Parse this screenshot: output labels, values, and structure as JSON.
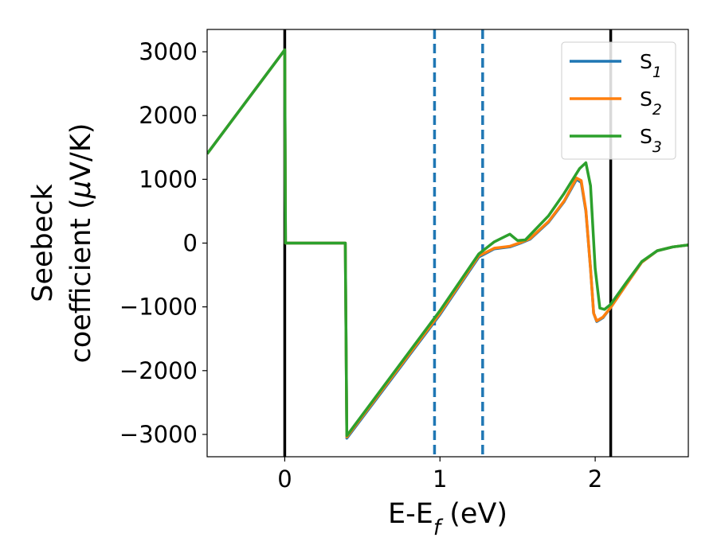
{
  "chart_data": {
    "type": "line",
    "xlabel": "E-E$_f$ (eV)",
    "ylabel_line1": "Seebeck",
    "ylabel_line2": "coefficient  ($\\mu$V/K)",
    "xlim": [
      -0.5,
      2.6
    ],
    "ylim": [
      -3350,
      3350
    ],
    "xticks": [
      0,
      1,
      2
    ],
    "yticks": [
      -3000,
      -2000,
      -1000,
      0,
      1000,
      2000,
      3000
    ],
    "grid": false,
    "legend_position": "top-right",
    "vertical_lines": [
      {
        "x": 0.0,
        "color": "#000000",
        "style": "solid"
      },
      {
        "x": 2.1,
        "color": "#000000",
        "style": "solid"
      },
      {
        "x": 0.965,
        "color": "#1f77b4",
        "style": "dashed"
      },
      {
        "x": 1.275,
        "color": "#1f77b4",
        "style": "dashed"
      }
    ],
    "series": [
      {
        "name": "S$_1$",
        "color": "#1f77b4",
        "points": [
          [
            -0.5,
            1400
          ],
          [
            0.0,
            3030
          ],
          [
            0.005,
            0
          ],
          [
            0.39,
            0
          ],
          [
            0.4,
            -3060
          ],
          [
            1.0,
            -1120
          ],
          [
            1.25,
            -220
          ],
          [
            1.35,
            -90
          ],
          [
            1.45,
            -60
          ],
          [
            1.52,
            0
          ],
          [
            1.58,
            60
          ],
          [
            1.7,
            330
          ],
          [
            1.8,
            650
          ],
          [
            1.88,
            1000
          ],
          [
            1.91,
            950
          ],
          [
            1.94,
            500
          ],
          [
            1.97,
            -400
          ],
          [
            1.99,
            -1100
          ],
          [
            2.01,
            -1230
          ],
          [
            2.05,
            -1170
          ],
          [
            2.1,
            -1010
          ],
          [
            2.2,
            -650
          ],
          [
            2.3,
            -300
          ],
          [
            2.4,
            -120
          ],
          [
            2.5,
            -60
          ],
          [
            2.6,
            -30
          ]
        ]
      },
      {
        "name": "S$_2$",
        "color": "#ff7f0e",
        "points": [
          [
            -0.5,
            1400
          ],
          [
            0.0,
            3030
          ],
          [
            0.005,
            0
          ],
          [
            0.39,
            0
          ],
          [
            0.4,
            -3040
          ],
          [
            1.0,
            -1100
          ],
          [
            1.25,
            -200
          ],
          [
            1.35,
            -80
          ],
          [
            1.45,
            -50
          ],
          [
            1.52,
            10
          ],
          [
            1.58,
            70
          ],
          [
            1.7,
            340
          ],
          [
            1.8,
            660
          ],
          [
            1.88,
            1020
          ],
          [
            1.91,
            980
          ],
          [
            1.94,
            520
          ],
          [
            1.97,
            -400
          ],
          [
            1.99,
            -1100
          ],
          [
            2.01,
            -1220
          ],
          [
            2.05,
            -1160
          ],
          [
            2.1,
            -1010
          ],
          [
            2.2,
            -650
          ],
          [
            2.3,
            -300
          ],
          [
            2.4,
            -120
          ],
          [
            2.5,
            -60
          ],
          [
            2.6,
            -30
          ]
        ]
      },
      {
        "name": "S$_3$",
        "color": "#2ca02c",
        "points": [
          [
            -0.5,
            1400
          ],
          [
            0.0,
            3030
          ],
          [
            0.005,
            0
          ],
          [
            0.39,
            0
          ],
          [
            0.4,
            -3020
          ],
          [
            1.0,
            -1060
          ],
          [
            1.25,
            -170
          ],
          [
            1.35,
            20
          ],
          [
            1.45,
            140
          ],
          [
            1.5,
            40
          ],
          [
            1.55,
            50
          ],
          [
            1.7,
            430
          ],
          [
            1.8,
            780
          ],
          [
            1.9,
            1170
          ],
          [
            1.94,
            1260
          ],
          [
            1.97,
            900
          ],
          [
            2.0,
            -400
          ],
          [
            2.03,
            -1020
          ],
          [
            2.06,
            -1040
          ],
          [
            2.1,
            -960
          ],
          [
            2.2,
            -620
          ],
          [
            2.3,
            -290
          ],
          [
            2.4,
            -120
          ],
          [
            2.5,
            -60
          ],
          [
            2.6,
            -30
          ]
        ]
      }
    ]
  }
}
